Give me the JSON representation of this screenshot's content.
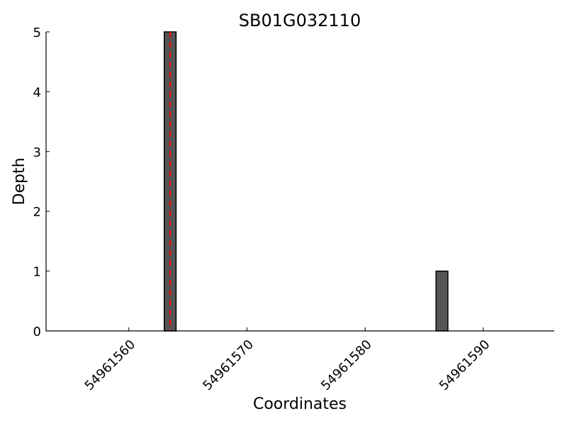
{
  "chart_data": {
    "type": "bar",
    "title": "SB01G032110",
    "xlabel": "Coordinates",
    "ylabel": "Depth",
    "xlim": [
      54961553,
      54961596
    ],
    "ylim": [
      0,
      5
    ],
    "xticks": [
      54961560,
      54961570,
      54961580,
      54961590
    ],
    "yticks": [
      0,
      1,
      2,
      3,
      4,
      5
    ],
    "bars": [
      {
        "start": 54961563,
        "end": 54961564,
        "value": 5
      },
      {
        "start": 54961586,
        "end": 54961587,
        "value": 1
      }
    ],
    "marker_line": {
      "x": 54961563.5,
      "style": "dashed"
    },
    "bar_color": "#555555",
    "marker_color": "#ff0000",
    "grid": false
  }
}
